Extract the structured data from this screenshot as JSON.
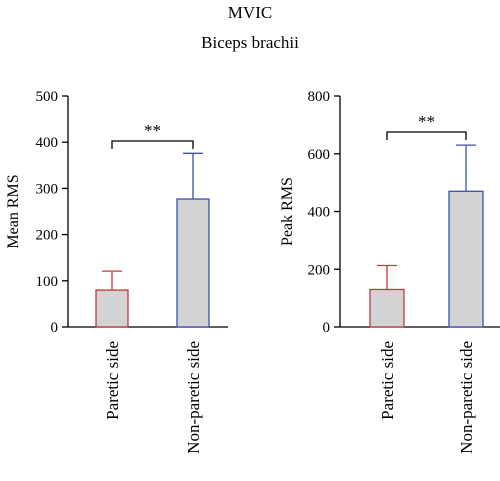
{
  "figure": {
    "title": "MVIC",
    "subtitle": "Biceps brachii"
  },
  "colors": {
    "bar_fill": "#d3d3d6",
    "paretic_edge": "#c0393b",
    "non_paretic_edge": "#3e4fa6",
    "axis": "#000000"
  },
  "chart_data": [
    {
      "type": "bar",
      "ylabel": "Mean RMS",
      "ylim": [
        0,
        500
      ],
      "yticks": [
        0,
        100,
        200,
        300,
        400,
        500
      ],
      "categories": [
        "Paretic side",
        "Non-paretic side"
      ],
      "values": [
        80,
        277
      ],
      "errors": [
        41,
        99
      ],
      "significance": {
        "from": 0,
        "to": 1,
        "label": "**"
      }
    },
    {
      "type": "bar",
      "ylabel": "Peak RMS",
      "ylim": [
        0,
        800
      ],
      "yticks": [
        0,
        200,
        400,
        600,
        800
      ],
      "categories": [
        "Paretic side",
        "Non-paretic side"
      ],
      "values": [
        130,
        470
      ],
      "errors": [
        83,
        160
      ],
      "significance": {
        "from": 0,
        "to": 1,
        "label": "**"
      }
    }
  ]
}
